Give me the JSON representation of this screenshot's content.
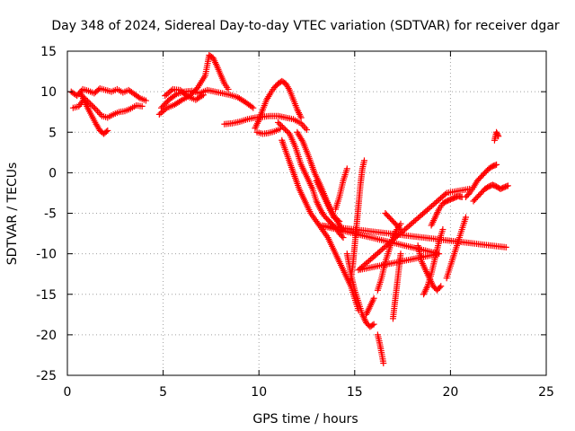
{
  "chart_data": {
    "type": "scatter",
    "title": "Day 348 of 2024, Sidereal Day-to-day VTEC variation (SDTVAR) for receiver dgar",
    "xlabel": "GPS time / hours",
    "ylabel": "SDTVAR / TECUs",
    "xlim": [
      0,
      25
    ],
    "ylim": [
      -25,
      15
    ],
    "xticks": [
      0,
      5,
      10,
      15,
      20,
      25
    ],
    "yticks": [
      -25,
      -20,
      -15,
      -10,
      -5,
      0,
      5,
      10,
      15
    ],
    "grid": true,
    "marker": "+",
    "color": "#ff0000",
    "series": [
      {
        "x": [
          0.2,
          0.5,
          0.8,
          1.1,
          1.4,
          1.7,
          2.0,
          2.3,
          2.6,
          2.9,
          3.2,
          3.5,
          3.8,
          4.1
        ],
        "y": [
          10.0,
          9.5,
          10.3,
          10.1,
          9.8,
          10.4,
          10.2,
          10.0,
          10.3,
          9.9,
          10.2,
          9.7,
          9.2,
          8.9
        ]
      },
      {
        "x": [
          0.3,
          0.6,
          0.9,
          1.2,
          1.5,
          1.8,
          2.1,
          2.4,
          2.7,
          3.0,
          3.3,
          3.6,
          3.9
        ],
        "y": [
          8.0,
          8.2,
          9.2,
          8.5,
          7.8,
          7.0,
          6.8,
          7.2,
          7.5,
          7.6,
          7.9,
          8.3,
          8.2
        ]
      },
      {
        "x": [
          0.7,
          0.9,
          1.1,
          1.3,
          1.5,
          1.7,
          1.9,
          2.1
        ],
        "y": [
          9.8,
          8.8,
          7.8,
          6.9,
          6.0,
          5.2,
          4.8,
          5.2
        ]
      },
      {
        "x": [
          4.8,
          5.2,
          5.6,
          6.0,
          6.4,
          6.8,
          7.2,
          7.4,
          7.6,
          7.8,
          8.0,
          8.2,
          8.4
        ],
        "y": [
          7.2,
          8.0,
          8.4,
          9.0,
          9.5,
          10.5,
          12.0,
          14.5,
          14.2,
          13.2,
          12.1,
          11.0,
          10.3
        ]
      },
      {
        "x": [
          4.9,
          5.3,
          5.7,
          6.1,
          6.5,
          6.9,
          7.3,
          7.7,
          8.1,
          8.5,
          8.9,
          9.3,
          9.7
        ],
        "y": [
          8.0,
          9.0,
          9.7,
          10.0,
          10.1,
          9.8,
          10.2,
          10.0,
          9.8,
          9.6,
          9.3,
          8.7,
          8.0
        ]
      },
      {
        "x": [
          5.1,
          5.5,
          5.9,
          6.3,
          6.7,
          7.1
        ],
        "y": [
          9.5,
          10.3,
          10.2,
          9.4,
          9.0,
          9.6
        ]
      },
      {
        "x": [
          8.2,
          8.6,
          9.0,
          9.4,
          9.8,
          10.2,
          10.6,
          11.0,
          11.4,
          11.8,
          12.2,
          12.5
        ],
        "y": [
          6.0,
          6.1,
          6.3,
          6.6,
          6.8,
          6.9,
          7.0,
          7.0,
          6.8,
          6.6,
          6.1,
          5.3
        ]
      },
      {
        "x": [
          9.8,
          10.0,
          10.2,
          10.4,
          10.6,
          10.8,
          11.0,
          11.2,
          11.4,
          11.6,
          11.8,
          12.0,
          12.2
        ],
        "y": [
          5.5,
          6.5,
          7.8,
          9.0,
          9.8,
          10.5,
          11.0,
          11.3,
          11.0,
          10.2,
          9.0,
          7.8,
          6.8
        ]
      },
      {
        "x": [
          9.9,
          10.2,
          10.5,
          10.8,
          11.1
        ],
        "y": [
          5.0,
          4.8,
          4.9,
          5.1,
          5.4
        ]
      },
      {
        "x": [
          11.0,
          11.3,
          11.6,
          11.9,
          12.2,
          12.5,
          12.8,
          13.0,
          13.2,
          13.4,
          13.6,
          13.8,
          14.0,
          14.2,
          14.4
        ],
        "y": [
          6.2,
          5.5,
          4.8,
          3.2,
          1.0,
          -0.5,
          -2.0,
          -3.5,
          -4.5,
          -5.3,
          -5.8,
          -6.3,
          -6.8,
          -7.5,
          -8.0
        ]
      },
      {
        "x": [
          11.2,
          11.5,
          11.8,
          12.1,
          12.4,
          12.7,
          13.0,
          13.3,
          13.6,
          13.9,
          14.2,
          14.5,
          14.8,
          15.0,
          15.2
        ],
        "y": [
          4.0,
          2.0,
          0.0,
          -2.0,
          -3.5,
          -5.0,
          -6.0,
          -7.0,
          -8.0,
          -9.5,
          -11.0,
          -12.5,
          -14.0,
          -15.5,
          -17.0
        ]
      },
      {
        "x": [
          12.0,
          12.3,
          12.6,
          12.9,
          13.2,
          13.5,
          13.8,
          14.1,
          14.4
        ],
        "y": [
          5.0,
          3.8,
          2.0,
          0.0,
          -1.5,
          -3.2,
          -4.8,
          -6.0,
          -7.2
        ]
      },
      {
        "x": [
          13.0,
          13.3,
          13.6,
          13.9,
          14.2
        ],
        "y": [
          -1.0,
          -2.5,
          -4.0,
          -5.5,
          -6.0
        ]
      },
      {
        "x": [
          14.0,
          14.2,
          14.4,
          14.6
        ],
        "y": [
          -4.5,
          -3.0,
          -1.0,
          0.5
        ]
      },
      {
        "x": [
          14.8,
          14.9,
          15.0,
          15.1,
          15.2,
          15.3,
          15.4,
          15.5
        ],
        "y": [
          -13.0,
          -11.5,
          -9.0,
          -6.5,
          -4.0,
          -1.5,
          0.5,
          1.5
        ]
      },
      {
        "x": [
          14.6,
          14.8,
          15.0,
          15.2,
          15.4,
          15.6,
          15.8,
          16.0
        ],
        "y": [
          -10.0,
          -12.5,
          -14.5,
          -16.0,
          -17.5,
          -18.5,
          -19.0,
          -18.7
        ]
      },
      {
        "x": [
          15.6,
          15.8,
          16.0
        ],
        "y": [
          -17.5,
          -16.5,
          -15.5
        ]
      },
      {
        "x": [
          16.2,
          16.3,
          16.4,
          16.5
        ],
        "y": [
          -20.0,
          -21.0,
          -22.2,
          -23.5
        ]
      },
      {
        "x": [
          16.2,
          16.4,
          16.6,
          16.8,
          17.0,
          17.2,
          17.4
        ],
        "y": [
          -14.5,
          -13.0,
          -11.0,
          -9.5,
          -8.0,
          -7.0,
          -6.3
        ]
      },
      {
        "x": [
          16.6,
          16.8,
          17.0,
          17.2,
          17.4
        ],
        "y": [
          -5.0,
          -5.5,
          -6.0,
          -6.5,
          -7.0
        ]
      },
      {
        "x": [
          17.0,
          17.1,
          17.2,
          17.3,
          17.4
        ],
        "y": [
          -18.0,
          -16.0,
          -14.0,
          -12.0,
          -10.0
        ]
      },
      {
        "x": [
          18.3,
          18.5,
          18.7,
          18.9,
          19.1,
          19.3,
          19.5
        ],
        "y": [
          -9.0,
          -11.0,
          -12.0,
          -13.0,
          -14.0,
          -14.5,
          -14.0
        ]
      },
      {
        "x": [
          18.6,
          18.8,
          19.0,
          19.2,
          19.4,
          19.6
        ],
        "y": [
          -15.0,
          -14.0,
          -12.5,
          -10.5,
          -8.5,
          -7.0
        ]
      },
      {
        "x": [
          19.0,
          19.2,
          19.4,
          19.6,
          19.8,
          20.0,
          20.2,
          20.4,
          20.6
        ],
        "y": [
          -6.5,
          -5.5,
          -4.5,
          -3.8,
          -3.5,
          -3.3,
          -3.1,
          -2.9,
          -3.0
        ]
      },
      {
        "x": [
          19.8,
          20.0,
          20.2,
          20.4,
          20.6,
          20.8
        ],
        "y": [
          -13.0,
          -11.5,
          -10.0,
          -8.5,
          -7.0,
          -5.5
        ]
      },
      {
        "x": [
          20.8,
          21.0,
          21.2,
          21.4,
          21.6,
          21.8,
          22.0,
          22.2,
          22.4
        ],
        "y": [
          -3.0,
          -2.5,
          -1.8,
          -1.0,
          -0.5,
          0.0,
          0.5,
          0.8,
          1.0
        ]
      },
      {
        "x": [
          21.2,
          21.4,
          21.6,
          21.8,
          22.0,
          22.2,
          22.4,
          22.6,
          22.8,
          23.0
        ],
        "y": [
          -3.5,
          -3.0,
          -2.5,
          -2.0,
          -1.7,
          -1.5,
          -1.7,
          -2.0,
          -1.8,
          -1.6
        ]
      },
      {
        "x": [
          22.3,
          22.4,
          22.5
        ],
        "y": [
          4.0,
          5.0,
          4.5
        ]
      },
      {
        "x": [
          22.9,
          13.2,
          19.4,
          15.2,
          19.8,
          21.0
        ],
        "y": [
          -9.2,
          -6.5,
          -10.0,
          -12.0,
          -2.5,
          -2.0
        ]
      }
    ]
  }
}
